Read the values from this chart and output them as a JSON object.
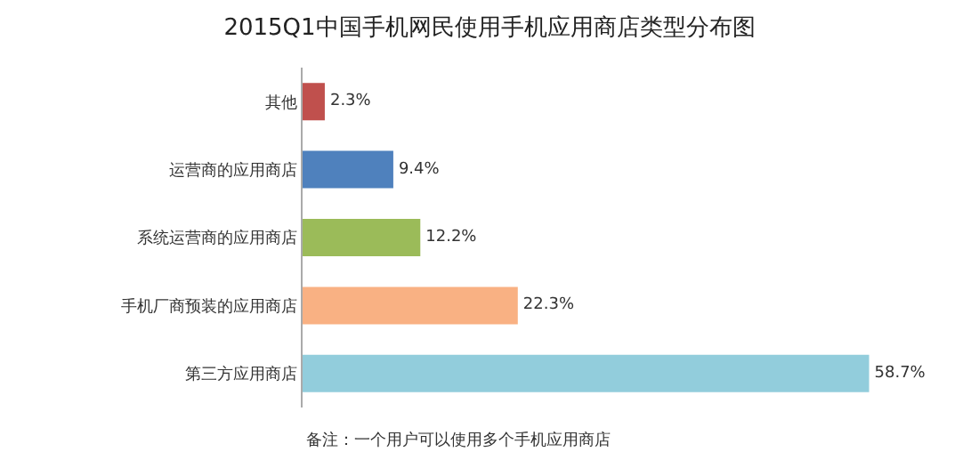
{
  "chart_data": {
    "type": "bar",
    "orientation": "horizontal",
    "title": "2015Q1中国手机网民使用手机应用商店类型分布图",
    "categories": [
      "其他",
      "运营商的应用商店",
      "系统运营商的应用商店",
      "手机厂商预装的应用商店",
      "第三方应用商店"
    ],
    "values": [
      2.3,
      9.4,
      12.2,
      22.3,
      58.7
    ],
    "colors": [
      "#c0504d",
      "#4f81bd",
      "#9bbb59",
      "#f9b183",
      "#92cddc"
    ],
    "value_labels": [
      "2.3%",
      "9.4%",
      "12.2%",
      "22.3%",
      "58.7%"
    ],
    "annotations": [
      "备注：一个用户可以使用多个手机应用商店"
    ],
    "legend": false
  }
}
